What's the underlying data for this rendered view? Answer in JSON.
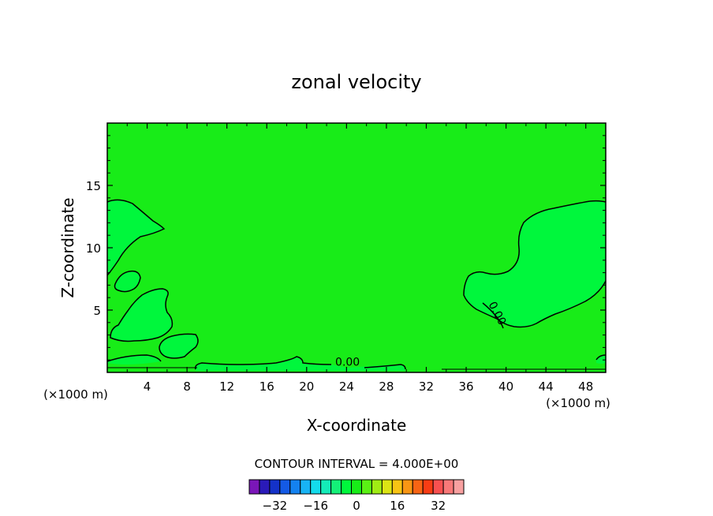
{
  "chart_data": {
    "type": "contour",
    "title": "zonal velocity",
    "xlabel": "X-coordinate",
    "ylabel": "Z-coordinate",
    "x_unit_label": "(×1000 m)",
    "z_unit_label": "(×1000 m)",
    "xlim": [
      0,
      50
    ],
    "ylim": [
      0,
      20
    ],
    "x_ticks": [
      4,
      8,
      12,
      16,
      20,
      24,
      28,
      32,
      36,
      40,
      44,
      48
    ],
    "y_ticks": [
      5,
      10,
      15
    ],
    "background_level_color": "#18ec18",
    "region_level_color": "#00f73c",
    "contour_labels": [
      {
        "text": "0.00",
        "x": 24.1,
        "z": 0.55
      },
      {
        "text": "0.00",
        "x": 38.8,
        "z": 4.6
      }
    ],
    "contour_interval_text": "CONTOUR INTERVAL = 4.000E+00",
    "colorbar": {
      "colors": [
        "#7a16b8",
        "#2a1ab8",
        "#1432c8",
        "#145ae6",
        "#1482f0",
        "#18b4f4",
        "#14dcec",
        "#14ecb8",
        "#14f078",
        "#00f73c",
        "#18ec18",
        "#5af014",
        "#a0ec14",
        "#dce414",
        "#f8c414",
        "#f89614",
        "#f86414",
        "#f83c14",
        "#f85050",
        "#f87878",
        "#f8a0a0"
      ],
      "tick_labels": [
        "-32",
        "-16",
        "0",
        "16",
        "32"
      ]
    }
  }
}
